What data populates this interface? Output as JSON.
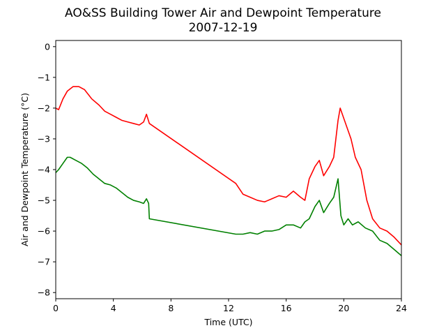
{
  "chart_data": {
    "type": "line",
    "title": "AO&SS Building Tower Air and Dewpoint Temperature",
    "subtitle": "2007-12-19",
    "xlabel": "Time (UTC)",
    "ylabel": "Air and Dewpoint Temperature (°C)",
    "xlim": [
      0,
      24
    ],
    "ylim": [
      -8.2,
      0.2
    ],
    "xticks": [
      0,
      4,
      8,
      12,
      16,
      20,
      24
    ],
    "yticks": [
      0,
      -1,
      -2,
      -3,
      -4,
      -5,
      -6,
      -7,
      -8
    ],
    "xtick_labels": [
      "0",
      "4",
      "8",
      "12",
      "16",
      "20",
      "24"
    ],
    "ytick_labels": [
      "0",
      "−1",
      "−2",
      "−3",
      "−4",
      "−5",
      "−6",
      "−7",
      "−8"
    ],
    "grid": false,
    "series": [
      {
        "color": "#ff0000",
        "x": [
          0,
          0.2,
          0.5,
          0.8,
          1.2,
          1.6,
          2.0,
          2.5,
          3.0,
          3.4,
          3.8,
          4.2,
          4.6,
          5.0,
          5.4,
          5.8,
          6.1,
          6.3,
          6.5,
          12.5,
          13.0,
          13.5,
          14.0,
          14.5,
          15.0,
          15.5,
          16.0,
          16.5,
          17.0,
          17.3,
          17.6,
          18.0,
          18.3,
          18.6,
          19.0,
          19.3,
          19.6,
          19.75,
          19.9,
          20.2,
          20.5,
          20.8,
          21.2,
          21.6,
          22.0,
          22.5,
          23.0,
          23.5,
          24.0
        ],
        "y": [
          -2.0,
          -2.05,
          -1.7,
          -1.45,
          -1.3,
          -1.3,
          -1.4,
          -1.7,
          -1.9,
          -2.1,
          -2.2,
          -2.3,
          -2.4,
          -2.45,
          -2.5,
          -2.55,
          -2.45,
          -2.2,
          -2.5,
          -4.45,
          -4.8,
          -4.9,
          -5.0,
          -5.05,
          -4.95,
          -4.85,
          -4.9,
          -4.7,
          -4.9,
          -5.0,
          -4.3,
          -3.9,
          -3.7,
          -4.2,
          -3.9,
          -3.6,
          -2.4,
          -2.0,
          -2.2,
          -2.6,
          -3.0,
          -3.6,
          -4.0,
          -5.0,
          -5.6,
          -5.9,
          -6.0,
          -6.2,
          -6.45
        ]
      },
      {
        "color": "#008000",
        "x": [
          0,
          0.2,
          0.5,
          0.8,
          1.0,
          1.4,
          1.8,
          2.2,
          2.6,
          3.0,
          3.4,
          3.8,
          4.2,
          4.6,
          5.0,
          5.4,
          5.8,
          6.1,
          6.3,
          6.45,
          6.5,
          12.5,
          13.0,
          13.5,
          14.0,
          14.5,
          15.0,
          15.5,
          16.0,
          16.5,
          17.0,
          17.3,
          17.6,
          18.0,
          18.3,
          18.6,
          19.0,
          19.3,
          19.6,
          19.8,
          20.0,
          20.3,
          20.6,
          21.0,
          21.5,
          22.0,
          22.5,
          23.0,
          23.5,
          24.0
        ],
        "y": [
          -4.1,
          -4.0,
          -3.8,
          -3.6,
          -3.6,
          -3.7,
          -3.8,
          -3.95,
          -4.15,
          -4.3,
          -4.45,
          -4.5,
          -4.6,
          -4.75,
          -4.9,
          -5.0,
          -5.05,
          -5.1,
          -4.95,
          -5.1,
          -5.6,
          -6.1,
          -6.1,
          -6.05,
          -6.1,
          -6.0,
          -6.0,
          -5.95,
          -5.8,
          -5.8,
          -5.9,
          -5.7,
          -5.6,
          -5.2,
          -5.0,
          -5.4,
          -5.1,
          -4.9,
          -4.3,
          -5.5,
          -5.8,
          -5.6,
          -5.8,
          -5.7,
          -5.9,
          -6.0,
          -6.3,
          -6.4,
          -6.6,
          -6.8
        ]
      }
    ]
  }
}
